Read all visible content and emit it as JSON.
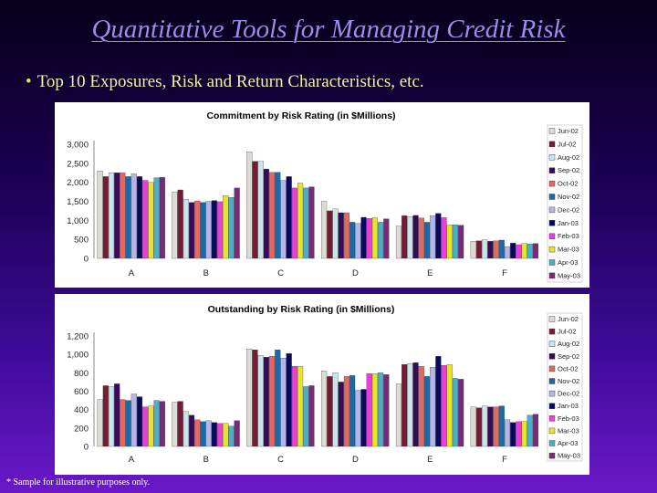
{
  "slide": {
    "title": "Quantitative Tools for Managing Credit Risk",
    "bullet": "Top 10 Exposures, Risk and Return Characteristics, etc.",
    "footnote": "* Sample for illustrative purposes only."
  },
  "colors": {
    "series": [
      "#dcdcd4",
      "#781a34",
      "#c8e4ec",
      "#3a0a5a",
      "#e06a60",
      "#1a6aa8",
      "#b6b6e4",
      "#0a0a5a",
      "#e640d8",
      "#e8e42a",
      "#4ab0c8",
      "#7a2a7a"
    ]
  },
  "chart_data": [
    {
      "type": "bar",
      "title": "Commitment by Risk Rating (in $Millions)",
      "categories": [
        "A",
        "B",
        "C",
        "D",
        "E",
        "F"
      ],
      "ylim": [
        0,
        3000
      ],
      "yticks": [
        "0",
        "500",
        "1,000",
        "1,500",
        "2,000",
        "2,500",
        "3,000"
      ],
      "grid": false,
      "legend": "right",
      "series": [
        {
          "name": "Jun-02",
          "values": [
            2300,
            1750,
            2800,
            1500,
            850,
            450
          ]
        },
        {
          "name": "Jul-02",
          "values": [
            2150,
            1800,
            2550,
            1250,
            1120,
            460
          ]
        },
        {
          "name": "Aug-02",
          "values": [
            2250,
            1550,
            2550,
            1300,
            1100,
            490
          ]
        },
        {
          "name": "Sep-02",
          "values": [
            2250,
            1470,
            2350,
            1200,
            1130,
            450
          ]
        },
        {
          "name": "Oct-02",
          "values": [
            2250,
            1510,
            2260,
            1200,
            1060,
            460
          ]
        },
        {
          "name": "Nov-02",
          "values": [
            2150,
            1470,
            2260,
            950,
            950,
            480
          ]
        },
        {
          "name": "Dec-02",
          "values": [
            2220,
            1500,
            2050,
            920,
            1120,
            310
          ]
        },
        {
          "name": "Jan-03",
          "values": [
            2150,
            1520,
            2150,
            1080,
            1180,
            400
          ]
        },
        {
          "name": "Feb-03",
          "values": [
            2050,
            1490,
            1850,
            1050,
            1070,
            360
          ]
        },
        {
          "name": "Mar-03",
          "values": [
            2000,
            1650,
            1980,
            1070,
            880,
            390
          ]
        },
        {
          "name": "Apr-03",
          "values": [
            2120,
            1600,
            1850,
            950,
            880,
            380
          ]
        },
        {
          "name": "May-03",
          "values": [
            2130,
            1850,
            1880,
            1040,
            870,
            390
          ]
        }
      ]
    },
    {
      "type": "bar",
      "title": "Outstanding by Risk Rating (in $Millions)",
      "categories": [
        "A",
        "B",
        "C",
        "D",
        "E",
        "F"
      ],
      "ylim": [
        0,
        1200
      ],
      "yticks": [
        "0",
        "200",
        "400",
        "600",
        "800",
        "1,000",
        "1,200"
      ],
      "grid": false,
      "legend": "right",
      "series": [
        {
          "name": "Jun-02",
          "values": [
            510,
            480,
            1060,
            820,
            680,
            430
          ]
        },
        {
          "name": "Jul-02",
          "values": [
            660,
            490,
            1050,
            760,
            890,
            420
          ]
        },
        {
          "name": "Aug-02",
          "values": [
            650,
            380,
            990,
            800,
            900,
            440
          ]
        },
        {
          "name": "Sep-02",
          "values": [
            680,
            340,
            970,
            700,
            910,
            430
          ]
        },
        {
          "name": "Oct-02",
          "values": [
            510,
            290,
            980,
            760,
            870,
            430
          ]
        },
        {
          "name": "Nov-02",
          "values": [
            500,
            270,
            1050,
            770,
            760,
            440
          ]
        },
        {
          "name": "Dec-02",
          "values": [
            570,
            280,
            960,
            610,
            860,
            290
          ]
        },
        {
          "name": "Jan-03",
          "values": [
            540,
            260,
            1010,
            620,
            980,
            260
          ]
        },
        {
          "name": "Feb-03",
          "values": [
            430,
            250,
            870,
            790,
            880,
            270
          ]
        },
        {
          "name": "Mar-03",
          "values": [
            440,
            250,
            870,
            790,
            890,
            270
          ]
        },
        {
          "name": "Apr-03",
          "values": [
            500,
            220,
            650,
            800,
            740,
            340
          ]
        },
        {
          "name": "May-03",
          "values": [
            490,
            280,
            660,
            780,
            730,
            350
          ]
        }
      ]
    }
  ]
}
